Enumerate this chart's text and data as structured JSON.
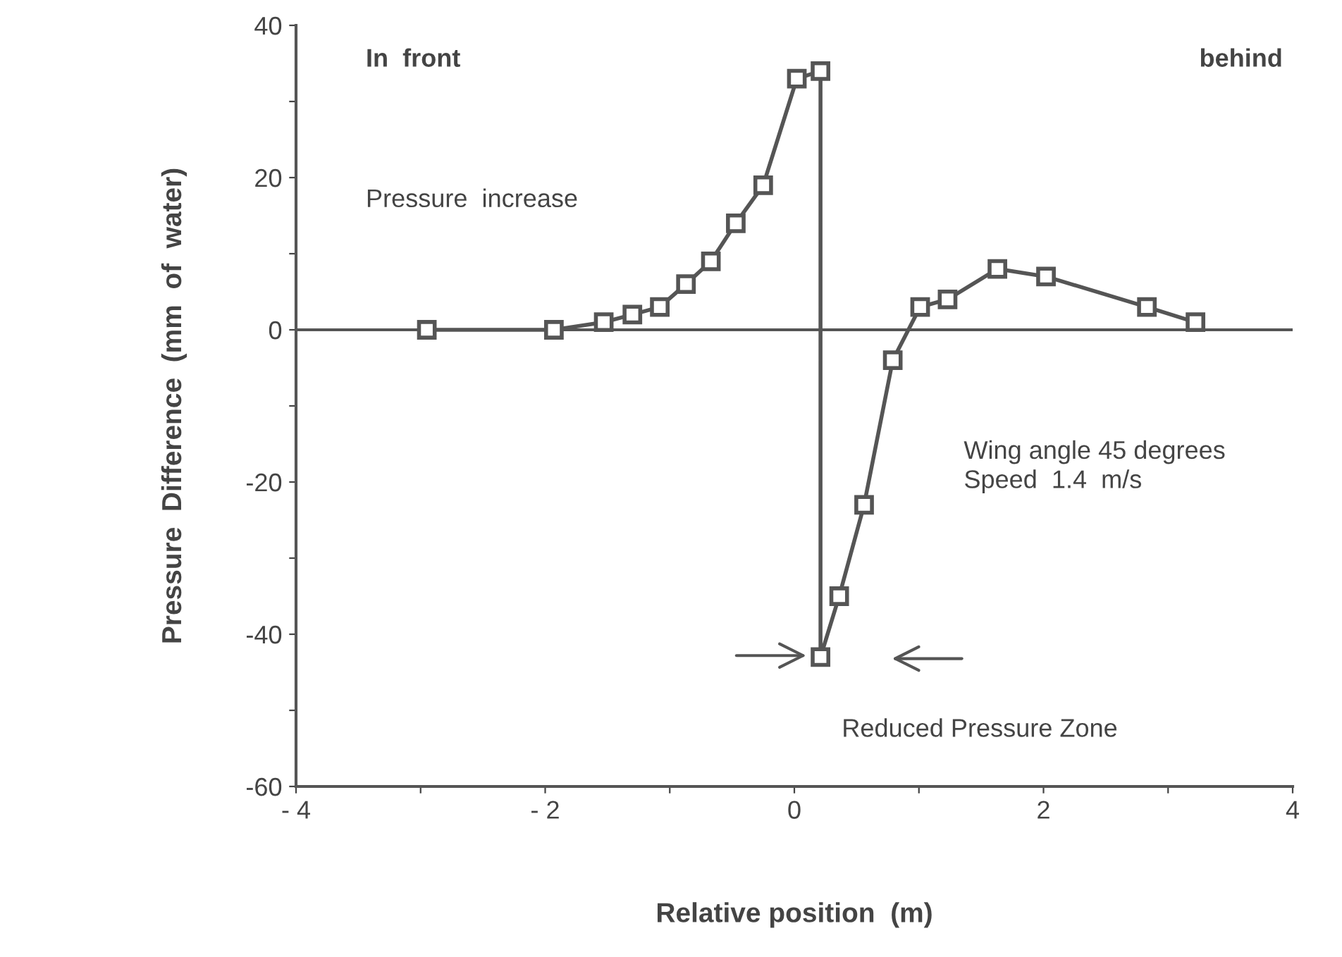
{
  "chart_data": {
    "type": "line",
    "xlabel": "Relative position  (m)",
    "ylabel": "Pressure  Difference  (mm  of  water)",
    "x": [
      -2.95,
      -1.93,
      -1.53,
      -1.3,
      -1.08,
      -0.87,
      -0.67,
      -0.47,
      -0.25,
      0.02,
      0.21,
      0.21,
      0.36,
      0.56,
      0.79,
      1.01,
      1.23,
      1.63,
      2.02,
      2.83,
      3.22
    ],
    "series": [
      {
        "color": "#555555",
        "values": [
          0,
          0,
          1,
          2,
          3,
          6,
          9,
          14,
          19,
          33,
          34,
          -43,
          -35,
          -23,
          -4,
          3,
          4,
          8,
          7,
          3,
          1
        ]
      }
    ],
    "marker": "square",
    "line_style": "solid",
    "grid": false,
    "legend": false,
    "xlim": [
      -4,
      4
    ],
    "ylim": [
      -60,
      40
    ],
    "xticks": [
      {
        "value": -4,
        "label": "- 4"
      },
      {
        "value": -3,
        "label": null
      },
      {
        "value": -2,
        "label": "- 2"
      },
      {
        "value": -1,
        "label": null
      },
      0,
      {
        "value": 1,
        "label": null
      },
      2,
      {
        "value": 3,
        "label": null
      },
      4
    ],
    "yticks": [
      -60,
      {
        "value": -50,
        "label": null
      },
      -40,
      {
        "value": -30,
        "label": null
      },
      -20,
      {
        "value": -10,
        "label": null
      },
      0,
      {
        "value": 10,
        "label": null
      },
      20,
      {
        "value": 30,
        "label": null
      },
      40
    ],
    "ref_lines": [
      {
        "axis": "y",
        "value": 0,
        "color": "#555555"
      }
    ],
    "annotations": [
      "In  front",
      "behind",
      "Pressure  increase",
      "Wing angle 45 degrees\nSpeed  1.4  m/s",
      "Reduced Pressure Zone"
    ]
  }
}
